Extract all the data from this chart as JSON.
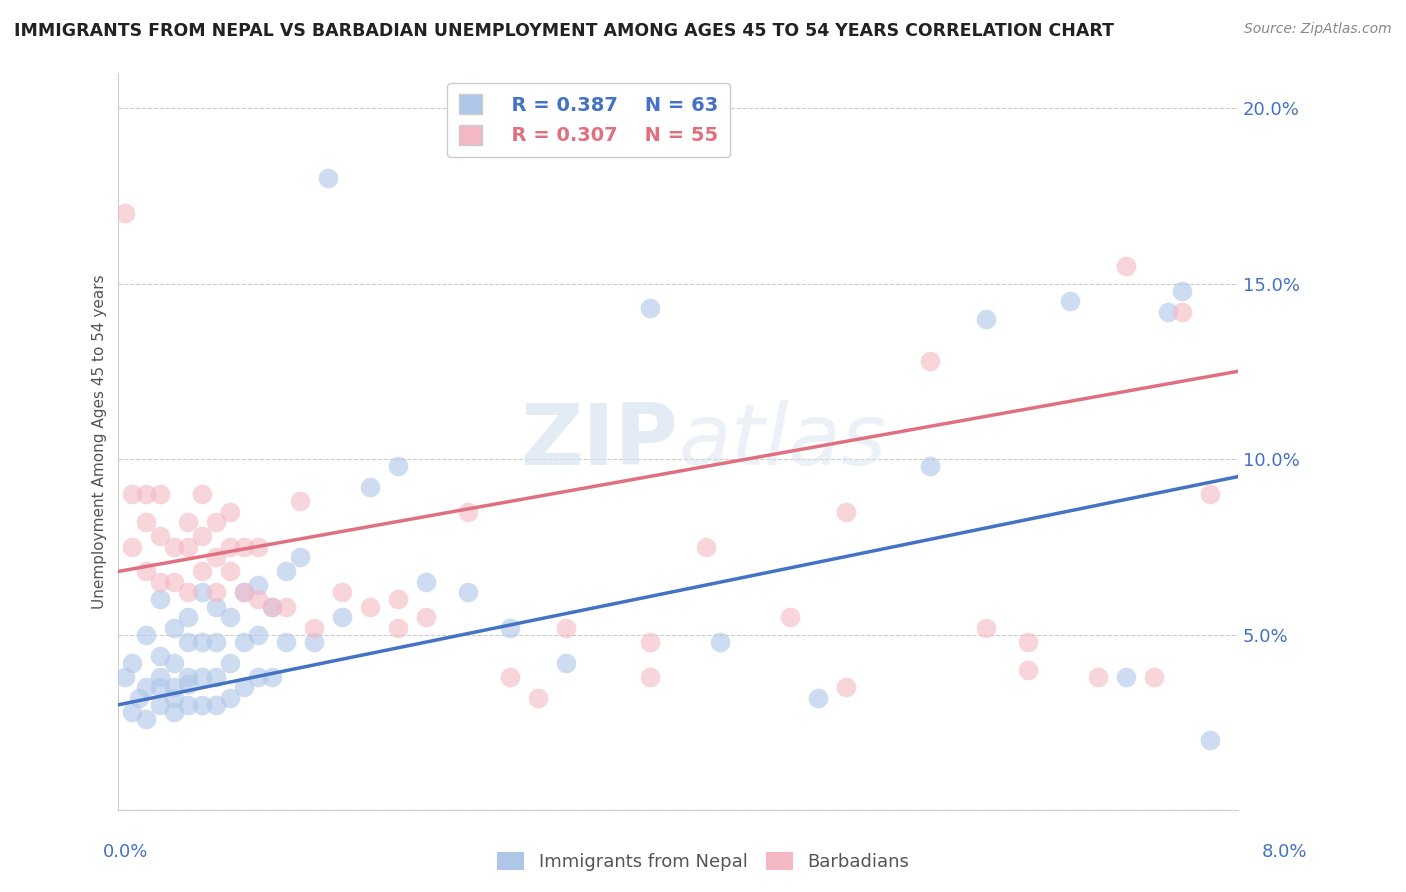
{
  "title": "IMMIGRANTS FROM NEPAL VS BARBADIAN UNEMPLOYMENT AMONG AGES 45 TO 54 YEARS CORRELATION CHART",
  "source": "Source: ZipAtlas.com",
  "xlim": [
    0.0,
    0.08
  ],
  "ylim": [
    0.0,
    0.21
  ],
  "blue_R": 0.387,
  "blue_N": 63,
  "pink_R": 0.307,
  "pink_N": 55,
  "blue_color": "#aec6e8",
  "pink_color": "#f4b8c4",
  "blue_line_color": "#4472c4",
  "pink_line_color": "#e07080",
  "legend_label_blue": "Immigrants from Nepal",
  "legend_label_pink": "Barbadians",
  "ylabel_ticks": [
    0.0,
    0.05,
    0.1,
    0.15,
    0.2
  ],
  "ylabel_labels": [
    "",
    "5.0%",
    "10.0%",
    "15.0%",
    "20.0%"
  ],
  "blue_line_x0": 0.0,
  "blue_line_y0": 0.03,
  "blue_line_x1": 0.08,
  "blue_line_y1": 0.095,
  "pink_line_x0": 0.0,
  "pink_line_y0": 0.068,
  "pink_line_x1": 0.08,
  "pink_line_y1": 0.125,
  "blue_scatter_x": [
    0.0005,
    0.001,
    0.001,
    0.0015,
    0.002,
    0.002,
    0.002,
    0.003,
    0.003,
    0.003,
    0.003,
    0.003,
    0.004,
    0.004,
    0.004,
    0.004,
    0.004,
    0.005,
    0.005,
    0.005,
    0.005,
    0.005,
    0.006,
    0.006,
    0.006,
    0.006,
    0.007,
    0.007,
    0.007,
    0.007,
    0.008,
    0.008,
    0.008,
    0.009,
    0.009,
    0.009,
    0.01,
    0.01,
    0.01,
    0.011,
    0.011,
    0.012,
    0.012,
    0.013,
    0.014,
    0.015,
    0.016,
    0.018,
    0.02,
    0.022,
    0.025,
    0.028,
    0.032,
    0.038,
    0.043,
    0.05,
    0.058,
    0.062,
    0.068,
    0.072,
    0.075,
    0.076,
    0.078
  ],
  "blue_scatter_y": [
    0.038,
    0.028,
    0.042,
    0.032,
    0.026,
    0.035,
    0.05,
    0.03,
    0.038,
    0.044,
    0.06,
    0.035,
    0.028,
    0.035,
    0.042,
    0.052,
    0.032,
    0.03,
    0.038,
    0.048,
    0.055,
    0.036,
    0.03,
    0.038,
    0.048,
    0.062,
    0.03,
    0.038,
    0.048,
    0.058,
    0.032,
    0.042,
    0.055,
    0.035,
    0.048,
    0.062,
    0.038,
    0.05,
    0.064,
    0.038,
    0.058,
    0.048,
    0.068,
    0.072,
    0.048,
    0.18,
    0.055,
    0.092,
    0.098,
    0.065,
    0.062,
    0.052,
    0.042,
    0.143,
    0.048,
    0.032,
    0.098,
    0.14,
    0.145,
    0.038,
    0.142,
    0.148,
    0.02
  ],
  "pink_scatter_x": [
    0.0005,
    0.001,
    0.001,
    0.002,
    0.002,
    0.002,
    0.003,
    0.003,
    0.003,
    0.004,
    0.004,
    0.005,
    0.005,
    0.005,
    0.006,
    0.006,
    0.006,
    0.007,
    0.007,
    0.007,
    0.008,
    0.008,
    0.008,
    0.009,
    0.009,
    0.01,
    0.01,
    0.011,
    0.012,
    0.013,
    0.014,
    0.016,
    0.018,
    0.02,
    0.022,
    0.025,
    0.028,
    0.032,
    0.038,
    0.042,
    0.048,
    0.052,
    0.058,
    0.062,
    0.065,
    0.07,
    0.072,
    0.074,
    0.076,
    0.078,
    0.02,
    0.03,
    0.038,
    0.052,
    0.065
  ],
  "pink_scatter_y": [
    0.17,
    0.075,
    0.09,
    0.068,
    0.082,
    0.09,
    0.065,
    0.078,
    0.09,
    0.065,
    0.075,
    0.062,
    0.075,
    0.082,
    0.068,
    0.078,
    0.09,
    0.062,
    0.072,
    0.082,
    0.068,
    0.075,
    0.085,
    0.062,
    0.075,
    0.06,
    0.075,
    0.058,
    0.058,
    0.088,
    0.052,
    0.062,
    0.058,
    0.06,
    0.055,
    0.085,
    0.038,
    0.052,
    0.038,
    0.075,
    0.055,
    0.085,
    0.128,
    0.052,
    0.048,
    0.038,
    0.155,
    0.038,
    0.142,
    0.09,
    0.052,
    0.032,
    0.048,
    0.035,
    0.04
  ]
}
